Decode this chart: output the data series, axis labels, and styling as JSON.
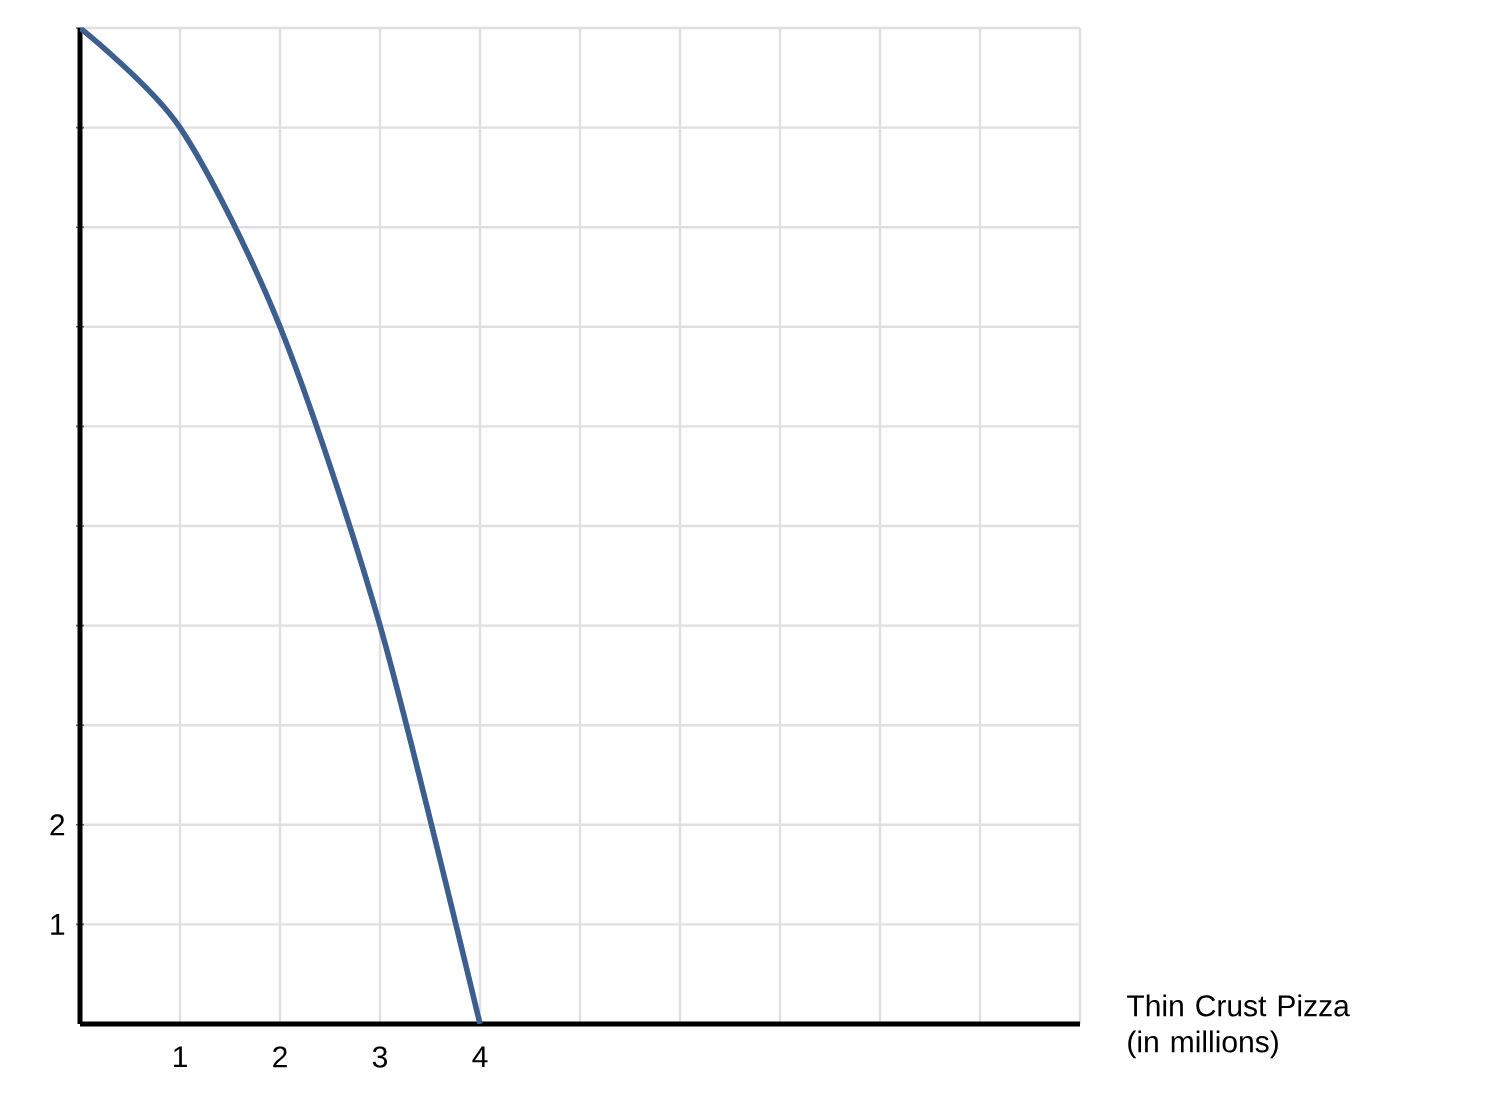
{
  "chart_data": {
    "type": "line",
    "xlabel": "Thin Crust Pizza (in millions)",
    "x": [
      0,
      1,
      2,
      3,
      4
    ],
    "series": [
      {
        "color": "#3d5f8f",
        "values": [
          10,
          9,
          7,
          4,
          0
        ]
      }
    ],
    "xlim": [
      0,
      10
    ],
    "ylim": [
      0,
      10
    ],
    "xticks": [
      1,
      2,
      3,
      4,
      {
        "value": 5,
        "label": null
      },
      {
        "value": 6,
        "label": null
      },
      {
        "value": 7,
        "label": null
      },
      {
        "value": 8,
        "label": null
      },
      {
        "value": 9,
        "label": null
      },
      {
        "value": 10,
        "label": null
      }
    ],
    "yticks": [
      1,
      2,
      {
        "value": 3,
        "label": null
      },
      {
        "value": 4,
        "label": null
      },
      {
        "value": 5,
        "label": null
      },
      {
        "value": 6,
        "label": null
      },
      {
        "value": 7,
        "label": null
      },
      {
        "value": 8,
        "label": null
      },
      {
        "value": 9,
        "label": null
      },
      {
        "value": 10,
        "label": null
      }
    ],
    "grid": true,
    "marker": "none",
    "line_style": "solid"
  }
}
